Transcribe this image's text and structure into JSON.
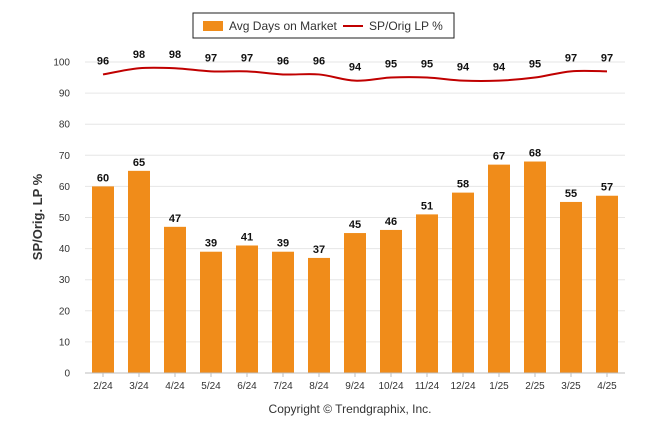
{
  "chart_data": {
    "type": "bar",
    "categories": [
      "2/24",
      "3/24",
      "4/24",
      "5/24",
      "6/24",
      "7/24",
      "8/24",
      "9/24",
      "10/24",
      "11/24",
      "12/24",
      "1/25",
      "2/25",
      "3/25",
      "4/25"
    ],
    "series": [
      {
        "name": "Avg Days on Market",
        "type": "bar",
        "color": "#f08c1a",
        "values": [
          60,
          65,
          47,
          39,
          41,
          39,
          37,
          45,
          46,
          51,
          58,
          67,
          68,
          55,
          57
        ]
      },
      {
        "name": "SP/Orig LP %",
        "type": "line",
        "color": "#c00000",
        "values": [
          96,
          98,
          98,
          97,
          97,
          96,
          96,
          94,
          95,
          95,
          94,
          94,
          95,
          97,
          97
        ]
      }
    ],
    "ylabel": "SP/Orig. LP %",
    "xlabel": "",
    "ylim": [
      0,
      100
    ],
    "yticks": [
      0,
      10,
      20,
      30,
      40,
      50,
      60,
      70,
      80,
      90,
      100
    ],
    "grid": true,
    "legend_position": "top-center"
  },
  "footer": {
    "credit": "Copyright © Trendgraphix, Inc."
  }
}
